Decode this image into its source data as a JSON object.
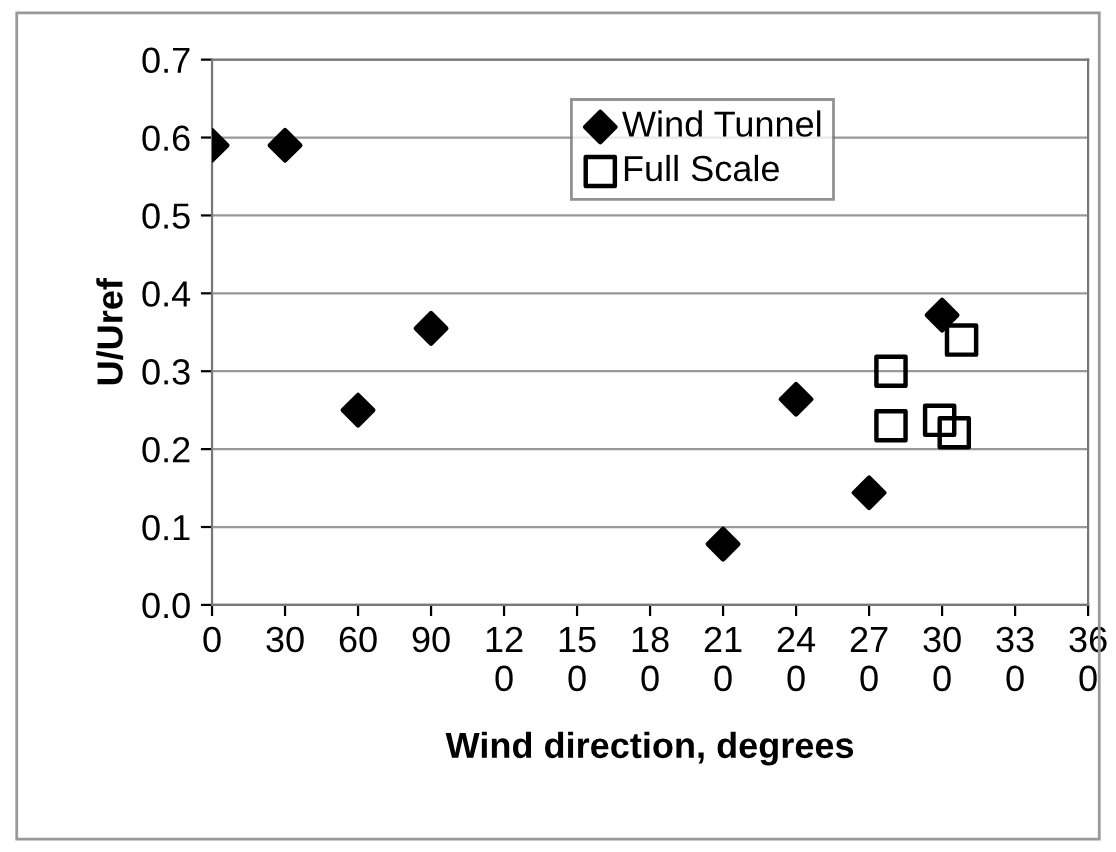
{
  "chart_data": {
    "type": "scatter",
    "xlabel": "Wind direction, degrees",
    "ylabel": "U/Uref",
    "xlim": [
      0,
      360
    ],
    "xticks": [
      0,
      30,
      60,
      90,
      120,
      150,
      180,
      210,
      240,
      270,
      300,
      330,
      360
    ],
    "ylim": [
      0,
      0.7
    ],
    "yticks": [
      {
        "value": 0,
        "label": "0.0"
      },
      0.1,
      0.2,
      0.3,
      0.4,
      0.5,
      0.6,
      0.7
    ],
    "grid": "y",
    "legend": "top right",
    "series": [
      {
        "name": "Wind Tunnel",
        "color": "#000000",
        "marker": "diamond",
        "x": [
          0,
          30,
          60,
          90,
          210,
          240,
          270,
          300
        ],
        "values": [
          0.59,
          0.59,
          0.25,
          0.355,
          0.078,
          0.264,
          0.144,
          0.372
        ]
      },
      {
        "name": "Full Scale",
        "color": "#000000",
        "marker": "square",
        "x": [
          279,
          279,
          299,
          305,
          308
        ],
        "values": [
          0.3,
          0.23,
          0.237,
          0.221,
          0.34
        ]
      }
    ]
  }
}
